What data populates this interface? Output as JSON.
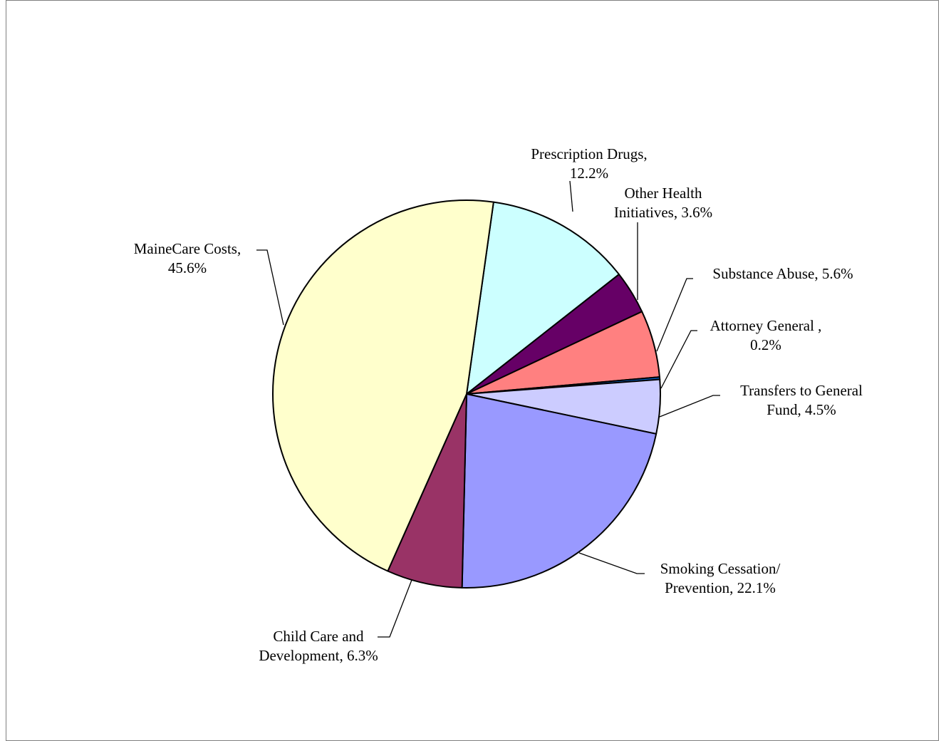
{
  "chart_data": {
    "type": "pie",
    "title": "",
    "start_angle_deg": -82.0,
    "direction": "clockwise",
    "slices": [
      {
        "id": "prescription-drugs",
        "label": "Prescription Drugs, 12.2%",
        "lines": [
          "Prescription Drugs,",
          "12.2%"
        ],
        "value": 12.2,
        "color": "#CCFFFF"
      },
      {
        "id": "other-health-initiatives",
        "label": "Other Health Initiatives, 3.6%",
        "lines": [
          "Other Health",
          "Initiatives, 3.6%"
        ],
        "value": 3.6,
        "color": "#660066"
      },
      {
        "id": "substance-abuse",
        "label": "Substance Abuse, 5.6%",
        "lines": [
          "Substance Abuse, 5.6%"
        ],
        "value": 5.6,
        "color": "#FF8080"
      },
      {
        "id": "attorney-general",
        "label": "Attorney General , 0.2%",
        "lines": [
          "Attorney General ,",
          "0.2%"
        ],
        "value": 0.2,
        "color": "#0066CC"
      },
      {
        "id": "transfers-to-general-fund",
        "label": "Transfers to General Fund, 4.5%",
        "lines": [
          "Transfers to General",
          "Fund, 4.5%"
        ],
        "value": 4.5,
        "color": "#CCCCFF"
      },
      {
        "id": "smoking-cessation-prevention",
        "label": "Smoking Cessation/ Prevention, 22.1%",
        "lines": [
          "Smoking Cessation/",
          "Prevention, 22.1%"
        ],
        "value": 22.1,
        "color": "#9999FF"
      },
      {
        "id": "child-care-and-development",
        "label": "Child Care and Development, 6.3%",
        "lines": [
          "Child Care and",
          "Development, 6.3%"
        ],
        "value": 6.3,
        "color": "#993366"
      },
      {
        "id": "mainecare-costs",
        "label": "MaineCare Costs, 45.6%",
        "lines": [
          "MaineCare Costs,",
          "45.6%"
        ],
        "value": 45.6,
        "color": "#FFFFCC"
      }
    ]
  }
}
